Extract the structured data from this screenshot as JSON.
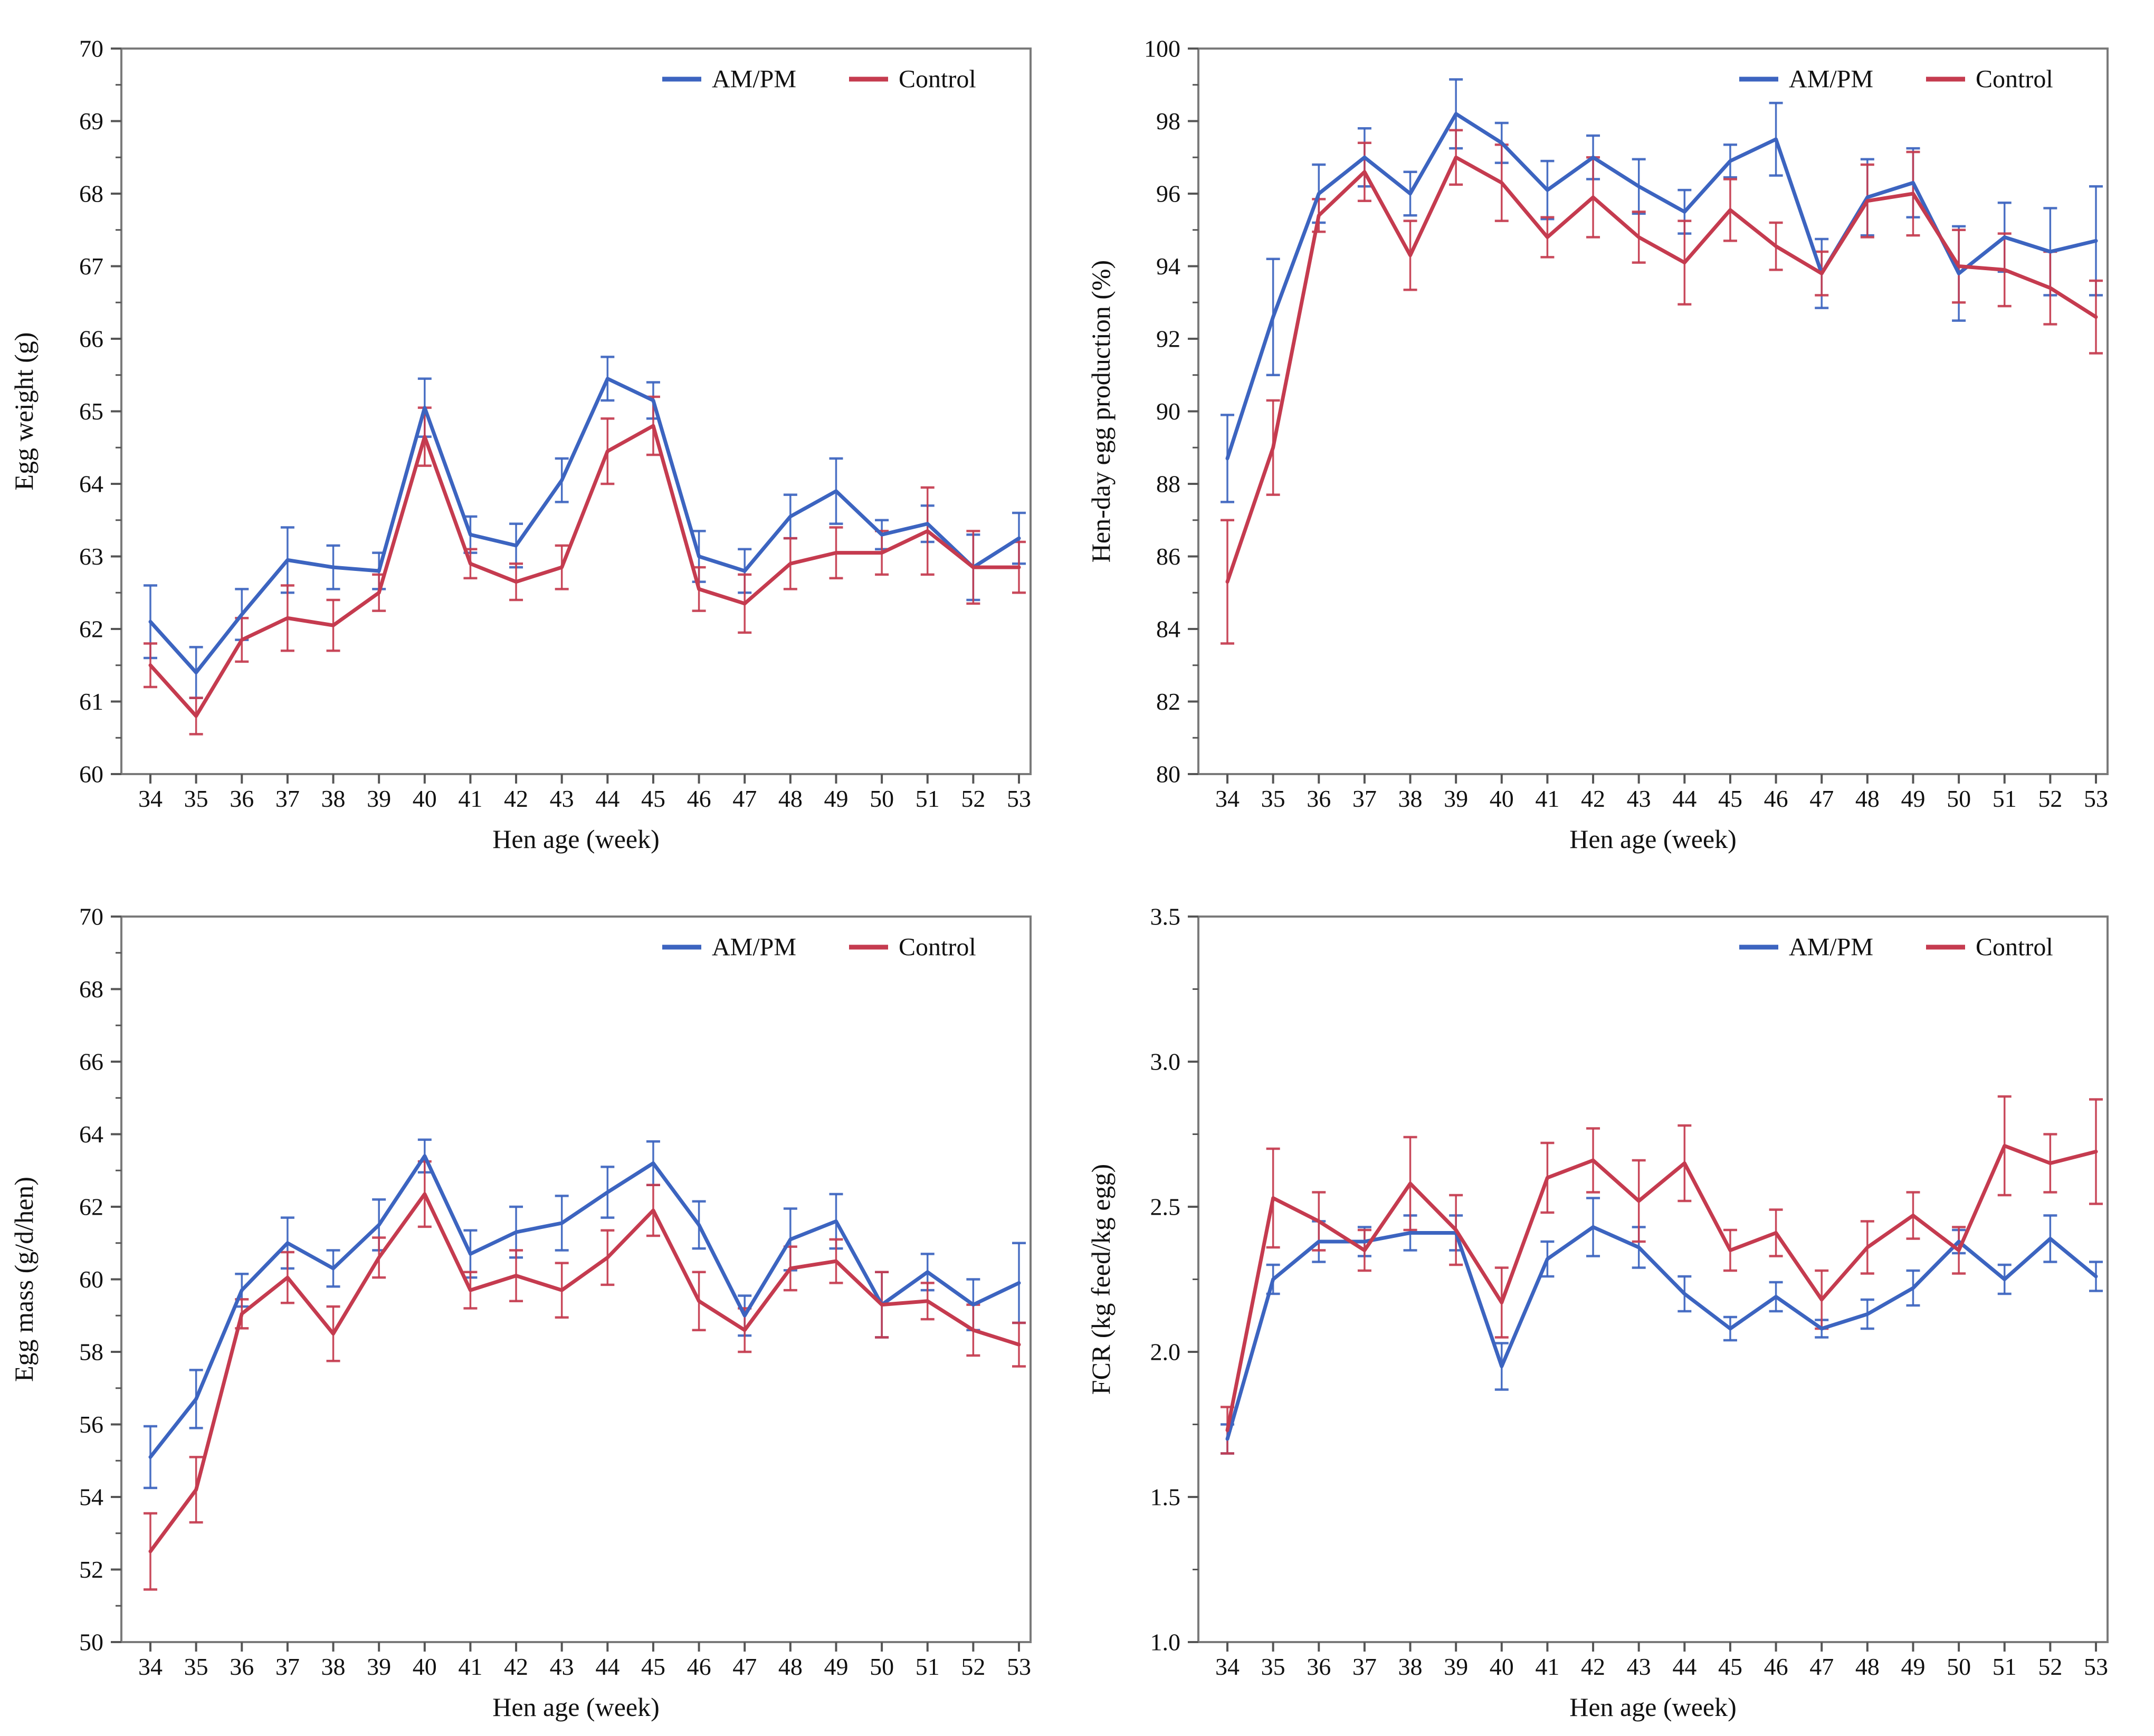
{
  "figure": {
    "layout": "2x2 grid of line charts with error bars",
    "x_axis_label": "Hen age (week)",
    "weeks": [
      34,
      35,
      36,
      37,
      38,
      39,
      40,
      41,
      42,
      43,
      44,
      45,
      46,
      47,
      48,
      49,
      50,
      51,
      52,
      53
    ]
  },
  "legend": {
    "am_pm": "AM/PM",
    "control": "Control",
    "position": "top-right-inside"
  },
  "colors": {
    "am_pm": "#3C64C0",
    "control": "#C53B4F",
    "frame": "#7a7a7a",
    "tick": "#555555",
    "text": "#111111",
    "background": "#ffffff"
  },
  "chart_data": [
    {
      "id": "egg-weight",
      "type": "line",
      "title": "",
      "xlabel": "Hen age (week)",
      "ylabel": "Egg weight (g)",
      "ylim": [
        60,
        70
      ],
      "ytick_step": 1,
      "y_minor_step": 0.5,
      "ytick_decimals": 0,
      "grid": false,
      "x": [
        34,
        35,
        36,
        37,
        38,
        39,
        40,
        41,
        42,
        43,
        44,
        45,
        46,
        47,
        48,
        49,
        50,
        51,
        52,
        53
      ],
      "series": [
        {
          "name": "AM/PM",
          "color": "#3C64C0",
          "values": [
            62.1,
            61.4,
            62.2,
            62.95,
            62.85,
            62.8,
            65.05,
            63.3,
            63.15,
            64.05,
            65.45,
            65.15,
            63.0,
            62.8,
            63.55,
            63.9,
            63.3,
            63.45,
            62.85,
            63.25
          ],
          "errors": [
            0.5,
            0.35,
            0.35,
            0.45,
            0.3,
            0.25,
            0.4,
            0.25,
            0.3,
            0.3,
            0.3,
            0.25,
            0.35,
            0.3,
            0.3,
            0.45,
            0.2,
            0.25,
            0.45,
            0.35
          ]
        },
        {
          "name": "Control",
          "color": "#C53B4F",
          "values": [
            61.5,
            60.8,
            61.85,
            62.15,
            62.05,
            62.5,
            64.65,
            62.9,
            62.65,
            62.85,
            64.45,
            64.8,
            62.55,
            62.35,
            62.9,
            63.05,
            63.05,
            63.35,
            62.85,
            62.85
          ],
          "errors": [
            0.3,
            0.25,
            0.3,
            0.45,
            0.35,
            0.25,
            0.4,
            0.2,
            0.25,
            0.3,
            0.45,
            0.4,
            0.3,
            0.4,
            0.35,
            0.35,
            0.3,
            0.6,
            0.5,
            0.35
          ]
        }
      ]
    },
    {
      "id": "hen-day-egg-production",
      "type": "line",
      "title": "",
      "xlabel": "Hen age (week)",
      "ylabel": "Hen-day egg production (%)",
      "ylim": [
        80,
        100
      ],
      "ytick_step": 2,
      "y_minor_step": 1,
      "ytick_decimals": 0,
      "grid": false,
      "x": [
        34,
        35,
        36,
        37,
        38,
        39,
        40,
        41,
        42,
        43,
        44,
        45,
        46,
        47,
        48,
        49,
        50,
        51,
        52,
        53
      ],
      "series": [
        {
          "name": "AM/PM",
          "color": "#3C64C0",
          "values": [
            88.7,
            92.6,
            96.0,
            97.0,
            96.0,
            98.2,
            97.4,
            96.1,
            97.0,
            96.2,
            95.5,
            96.9,
            97.5,
            93.8,
            95.9,
            96.3,
            93.8,
            94.8,
            94.4,
            94.7
          ],
          "errors": [
            1.2,
            1.6,
            0.8,
            0.8,
            0.6,
            0.95,
            0.55,
            0.8,
            0.6,
            0.75,
            0.6,
            0.45,
            1.0,
            0.95,
            1.05,
            0.95,
            1.3,
            0.95,
            1.2,
            1.5
          ]
        },
        {
          "name": "Control",
          "color": "#C53B4F",
          "values": [
            85.3,
            89.0,
            95.4,
            96.6,
            94.3,
            97.0,
            96.3,
            94.8,
            95.9,
            94.8,
            94.1,
            95.55,
            94.55,
            93.8,
            95.8,
            96.0,
            94.0,
            93.9,
            93.4,
            92.6
          ],
          "errors": [
            1.7,
            1.3,
            0.45,
            0.8,
            0.95,
            0.75,
            1.05,
            0.55,
            1.1,
            0.7,
            1.15,
            0.85,
            0.65,
            0.6,
            1.0,
            1.15,
            1.0,
            1.0,
            1.0,
            1.0
          ]
        }
      ]
    },
    {
      "id": "egg-mass",
      "type": "line",
      "title": "",
      "xlabel": "Hen age (week)",
      "ylabel": "Egg mass (g/d/hen)",
      "ylim": [
        50,
        70
      ],
      "ytick_step": 2,
      "y_minor_step": 1,
      "ytick_decimals": 0,
      "grid": false,
      "x": [
        34,
        35,
        36,
        37,
        38,
        39,
        40,
        41,
        42,
        43,
        44,
        45,
        46,
        47,
        48,
        49,
        50,
        51,
        52,
        53
      ],
      "series": [
        {
          "name": "AM/PM",
          "color": "#3C64C0",
          "values": [
            55.1,
            56.7,
            59.7,
            61.0,
            60.3,
            61.5,
            63.4,
            60.7,
            61.3,
            61.55,
            62.4,
            63.2,
            61.5,
            59.0,
            61.1,
            61.6,
            59.3,
            60.2,
            59.3,
            59.9
          ],
          "errors": [
            0.85,
            0.8,
            0.45,
            0.7,
            0.5,
            0.7,
            0.45,
            0.65,
            0.7,
            0.75,
            0.7,
            0.6,
            0.65,
            0.55,
            0.85,
            0.75,
            0.9,
            0.5,
            0.7,
            1.1
          ]
        },
        {
          "name": "Control",
          "color": "#C53B4F",
          "values": [
            52.5,
            54.2,
            59.05,
            60.05,
            58.5,
            60.6,
            62.35,
            59.7,
            60.1,
            59.7,
            60.6,
            61.9,
            59.4,
            58.6,
            60.3,
            60.5,
            59.3,
            59.4,
            58.6,
            58.2
          ],
          "errors": [
            1.05,
            0.9,
            0.4,
            0.7,
            0.75,
            0.55,
            0.9,
            0.5,
            0.7,
            0.75,
            0.75,
            0.7,
            0.8,
            0.6,
            0.6,
            0.6,
            0.9,
            0.5,
            0.7,
            0.6
          ]
        }
      ]
    },
    {
      "id": "fcr",
      "type": "line",
      "title": "",
      "xlabel": "Hen age (week)",
      "ylabel": "FCR (kg feed/kg egg)",
      "ylim": [
        1.0,
        3.5
      ],
      "ytick_step": 0.5,
      "y_minor_step": 0.25,
      "ytick_decimals": 1,
      "grid": false,
      "x": [
        34,
        35,
        36,
        37,
        38,
        39,
        40,
        41,
        42,
        43,
        44,
        45,
        46,
        47,
        48,
        49,
        50,
        51,
        52,
        53
      ],
      "series": [
        {
          "name": "AM/PM",
          "color": "#3C64C0",
          "values": [
            1.7,
            2.25,
            2.38,
            2.38,
            2.41,
            2.41,
            1.95,
            2.32,
            2.43,
            2.36,
            2.2,
            2.08,
            2.19,
            2.08,
            2.13,
            2.22,
            2.38,
            2.25,
            2.39,
            2.26
          ],
          "errors": [
            0.05,
            0.05,
            0.07,
            0.05,
            0.06,
            0.06,
            0.08,
            0.06,
            0.1,
            0.07,
            0.06,
            0.04,
            0.05,
            0.03,
            0.05,
            0.06,
            0.04,
            0.05,
            0.08,
            0.05
          ]
        },
        {
          "name": "Control",
          "color": "#C53B4F",
          "values": [
            1.73,
            2.53,
            2.45,
            2.35,
            2.58,
            2.42,
            2.17,
            2.6,
            2.66,
            2.52,
            2.65,
            2.35,
            2.41,
            2.18,
            2.36,
            2.47,
            2.35,
            2.71,
            2.65,
            2.69
          ],
          "errors": [
            0.08,
            0.17,
            0.1,
            0.07,
            0.16,
            0.12,
            0.12,
            0.12,
            0.11,
            0.14,
            0.13,
            0.07,
            0.08,
            0.1,
            0.09,
            0.08,
            0.08,
            0.17,
            0.1,
            0.18
          ]
        }
      ]
    }
  ]
}
